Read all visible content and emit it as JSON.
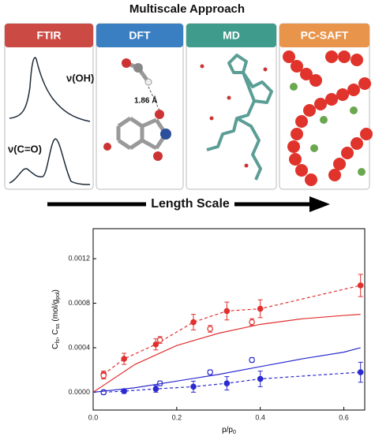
{
  "diagram": {
    "title": "Multiscale Approach",
    "panels": [
      {
        "label": "FTIR"
      },
      {
        "label": "DFT"
      },
      {
        "label": "MD"
      },
      {
        "label": "PC-SAFT"
      }
    ],
    "ftir_annotations": [
      "ν(OH)",
      "ν(C=O)"
    ],
    "dft_annotation": "1.86 Å",
    "arrow_label": "Length Scale"
  },
  "chart_data": {
    "type": "scatter",
    "xlabel": [
      "p/p",
      "0"
    ],
    "ylabel": [
      "C",
      "fs",
      ", C",
      "ss",
      " (mol/g",
      "pol",
      ")"
    ],
    "xlim": [
      0,
      0.65
    ],
    "ylim": [
      -0.00016,
      0.00147
    ],
    "xticks": [
      {
        "value": 0,
        "label": "0.0"
      },
      {
        "value": 0.2,
        "label": "0.2"
      },
      {
        "value": 0.4,
        "label": "0.4"
      },
      {
        "value": 0.6,
        "label": "0.6"
      }
    ],
    "yticks": [
      {
        "value": 0,
        "label": "0.0000"
      },
      {
        "value": 0.0004,
        "label": "0.0004"
      },
      {
        "value": 0.0008,
        "label": "0.0008"
      },
      {
        "value": 0.0012,
        "label": "0.0012"
      }
    ],
    "series": [
      {
        "color": "#e03030",
        "style": "filled",
        "dashed": true,
        "x": [
          0.025,
          0.074,
          0.15,
          0.24,
          0.32,
          0.4,
          0.64
        ],
        "values": [
          0.00016,
          0.0003,
          0.00043,
          0.00063,
          0.00073,
          0.00075,
          0.00096
        ],
        "errors": [
          3e-05,
          5e-05,
          5e-05,
          7e-05,
          8e-05,
          8e-05,
          0.0001
        ]
      },
      {
        "color": "#e03030",
        "style": "open",
        "x": [
          0.025,
          0.16,
          0.28,
          0.38
        ],
        "values": [
          0.00015,
          0.00047,
          0.00057,
          0.00063
        ],
        "errors": [
          3e-05,
          3e-05,
          3e-05,
          3e-05
        ]
      },
      {
        "color": "#e03030",
        "style": "line",
        "x": [
          0,
          0.1,
          0.2,
          0.3,
          0.4,
          0.5,
          0.6,
          0.64
        ],
        "values": [
          0,
          0.00025,
          0.00042,
          0.00053,
          0.00061,
          0.00066,
          0.00069,
          0.0007
        ]
      },
      {
        "color": "#2a2ad0",
        "style": "filled",
        "dashed": true,
        "x": [
          0.025,
          0.074,
          0.15,
          0.24,
          0.32,
          0.4,
          0.64
        ],
        "values": [
          0.0,
          1e-05,
          3e-05,
          5e-05,
          8e-05,
          0.00012,
          0.00018
        ],
        "errors": [
          1e-05,
          2e-05,
          3e-05,
          5e-05,
          6e-05,
          7e-05,
          9e-05
        ]
      },
      {
        "color": "#2a2ad0",
        "style": "open",
        "x": [
          0.025,
          0.16,
          0.28,
          0.38
        ],
        "values": [
          0.0,
          8e-05,
          0.00018,
          0.00029
        ],
        "errors": [
          2e-05,
          2e-05,
          2e-05,
          2e-05
        ]
      },
      {
        "color": "#2a2ad0",
        "style": "line",
        "x": [
          0,
          0.1,
          0.2,
          0.3,
          0.4,
          0.5,
          0.6,
          0.64
        ],
        "values": [
          0,
          4e-05,
          0.0001,
          0.00016,
          0.00023,
          0.0003,
          0.00036,
          0.0004
        ]
      }
    ]
  }
}
